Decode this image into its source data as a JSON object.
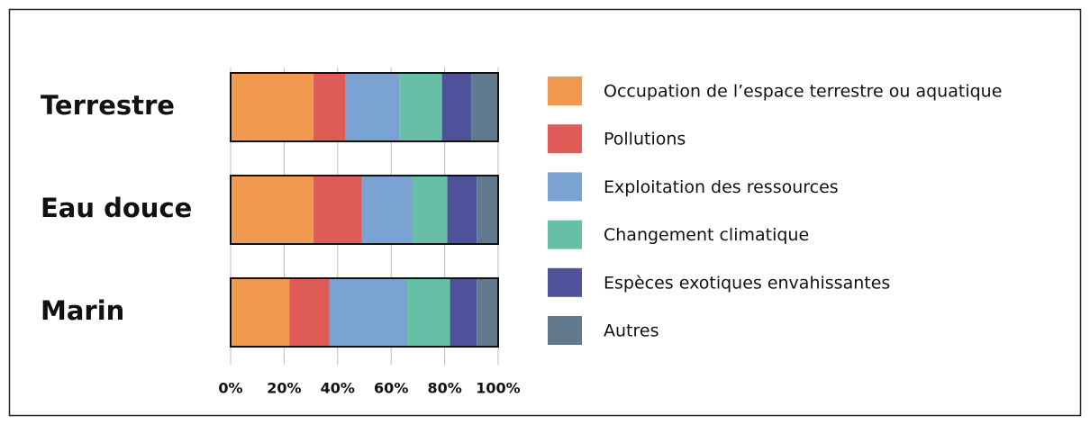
{
  "chart_data": {
    "type": "stacked-bar-horizontal",
    "categories": [
      "Terrestre",
      "Eau douce",
      "Marin"
    ],
    "series": [
      {
        "name": "Occupation de l’espace terrestre ou aquatique",
        "color": "#f0994f",
        "values": [
          31,
          31,
          22
        ]
      },
      {
        "name": "Pollutions",
        "color": "#de5b58",
        "values": [
          12,
          18,
          15
        ]
      },
      {
        "name": "Exploitation des ressources",
        "color": "#7aa3d4",
        "values": [
          20,
          19,
          29
        ]
      },
      {
        "name": "Changement climatique",
        "color": "#67c0a5",
        "values": [
          16,
          13,
          16
        ]
      },
      {
        "name": "Espèces exotiques envahissantes",
        "color": "#4f519b",
        "values": [
          11,
          11,
          10
        ]
      },
      {
        "name": "Autres",
        "color": "#627a8d",
        "values": [
          10,
          8,
          8
        ]
      }
    ],
    "xlim": [
      0,
      100
    ],
    "xticks": [
      {
        "value": 0,
        "label": "0%"
      },
      {
        "value": 20,
        "label": "20%"
      },
      {
        "value": 40,
        "label": "40%"
      },
      {
        "value": 60,
        "label": "60%"
      },
      {
        "value": 80,
        "label": "80%"
      },
      {
        "value": 100,
        "label": "100%"
      }
    ],
    "grid": true,
    "legend": "right"
  }
}
